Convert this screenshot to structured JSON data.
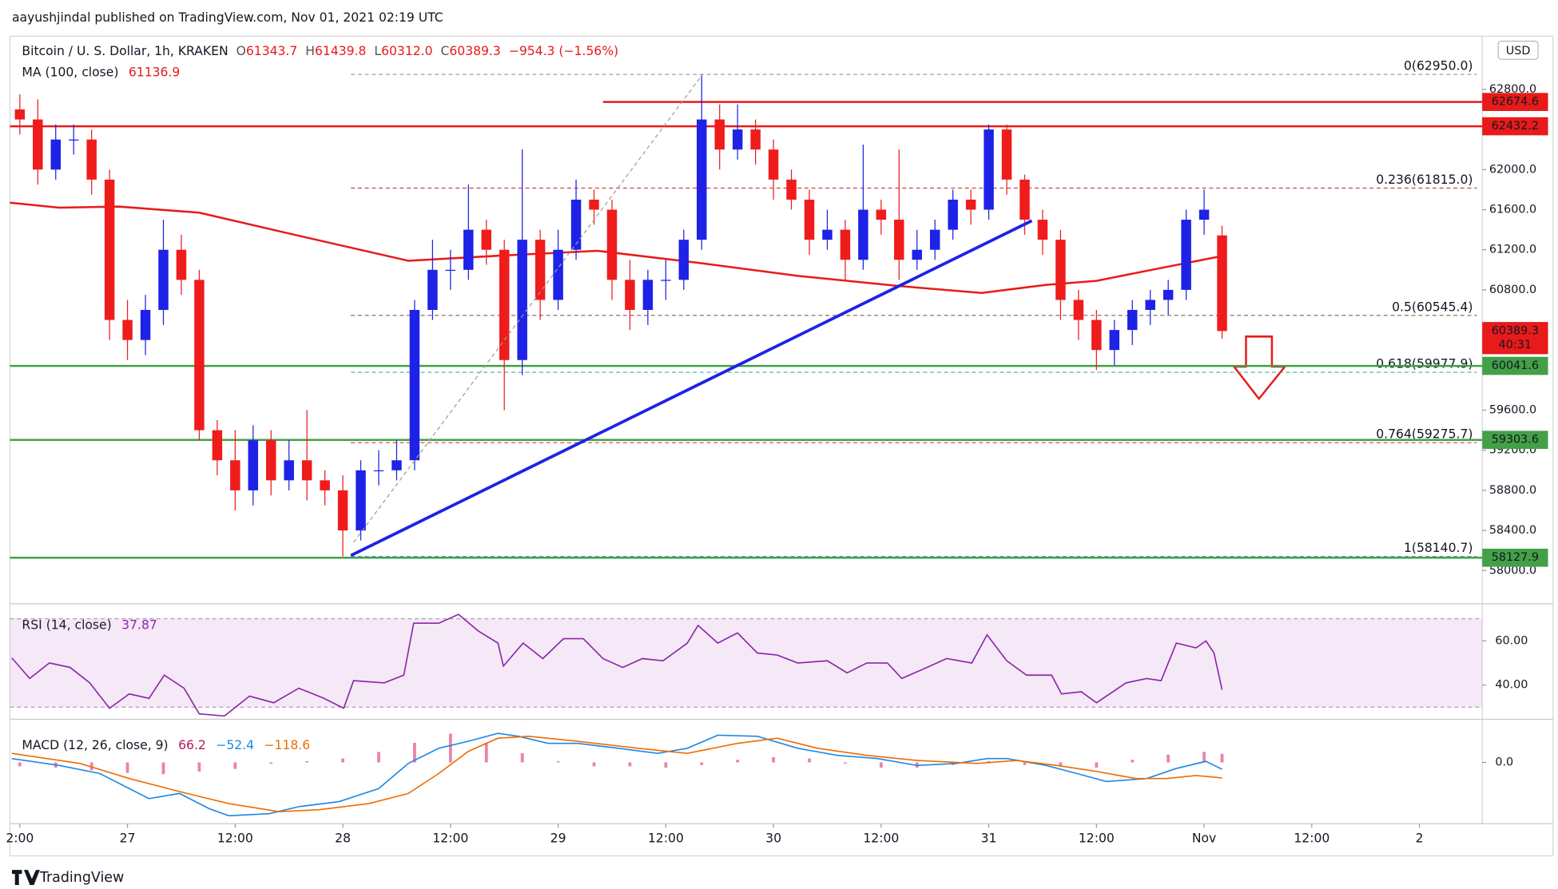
{
  "chart_data": {
    "type": "candlestick",
    "published": "aayushjindal published on TradingView.com, Nov 01, 2021 02:19 UTC",
    "brand": "TradingView",
    "currency": "USD",
    "symbol": "Bitcoin / U. S. Dollar, 1h, KRAKEN",
    "ohlc": [
      {
        "key": "O",
        "value": "61343.7"
      },
      {
        "key": "H",
        "value": "61439.8"
      },
      {
        "key": "L",
        "value": "60312.0"
      },
      {
        "key": "C",
        "value": "60389.3"
      }
    ],
    "change": "−954.3 (−1.56%)",
    "xlim": [
      -1.1,
      163
    ],
    "xticks": [
      {
        "value": 0,
        "label": "2:00"
      },
      {
        "value": 12,
        "label": "27"
      },
      {
        "value": 24,
        "label": "12:00"
      },
      {
        "value": 36,
        "label": "28"
      },
      {
        "value": 48,
        "label": "12:00"
      },
      {
        "value": 60,
        "label": "29"
      },
      {
        "value": 72,
        "label": "12:00"
      },
      {
        "value": 84,
        "label": "30"
      },
      {
        "value": 96,
        "label": "12:00"
      },
      {
        "value": 108,
        "label": "31"
      },
      {
        "value": 120,
        "label": "12:00"
      },
      {
        "value": 132,
        "label": "Nov"
      },
      {
        "value": 144,
        "label": "12:00"
      },
      {
        "value": 156,
        "label": "2"
      }
    ],
    "ylim": [
      57679,
      63291
    ],
    "yticks": [
      {
        "value": 62800,
        "label": "62800.0"
      },
      {
        "value": 62000,
        "label": "62000.0"
      },
      {
        "value": 61600,
        "label": "61600.0"
      },
      {
        "value": 61200,
        "label": "61200.0"
      },
      {
        "value": 60800,
        "label": "60800.0"
      },
      {
        "value": 59600,
        "label": "59600.0"
      },
      {
        "value": 59200,
        "label": "59200.0"
      },
      {
        "value": 58800,
        "label": "58800.0"
      },
      {
        "value": 58400,
        "label": "58400.0"
      },
      {
        "value": 58000,
        "label": "58000.0"
      }
    ],
    "candles": {
      "up_color": "#1e22e6",
      "down_color": "#ef1c1c",
      "x": [
        0,
        2,
        4,
        6,
        8,
        10,
        12,
        14,
        16,
        18,
        20,
        22,
        24,
        26,
        28,
        30,
        32,
        34,
        36,
        38,
        40,
        42,
        44,
        46,
        48,
        50,
        52,
        54,
        56,
        58,
        60,
        62,
        64,
        66,
        68,
        70,
        72,
        74,
        76,
        78,
        80,
        82,
        84,
        86,
        88,
        90,
        92,
        94,
        96,
        98,
        100,
        102,
        104,
        106,
        108,
        110,
        112,
        114,
        116,
        118,
        120,
        122,
        124,
        126,
        128,
        130,
        132,
        134
      ],
      "open": [
        62600,
        62500,
        62000,
        62300,
        62300,
        61900,
        60500,
        60300,
        60600,
        61200,
        60900,
        59400,
        59100,
        58800,
        59300,
        58900,
        59100,
        58900,
        58800,
        58400,
        59000,
        59000,
        59100,
        60600,
        61000,
        61000,
        61400,
        61200,
        60100,
        61300,
        60700,
        61200,
        61700,
        61600,
        60900,
        60600,
        60900,
        60900,
        61300,
        62500,
        62200,
        62400,
        62200,
        61900,
        61700,
        61300,
        61400,
        61100,
        61600,
        61500,
        61100,
        61200,
        61400,
        61700,
        61600,
        62400,
        61900,
        61500,
        61300,
        60700,
        60500,
        60200,
        60400,
        60600,
        60700,
        60800,
        61500,
        61343.7
      ],
      "high": [
        62750,
        62700,
        62450,
        62450,
        62400,
        62000,
        60700,
        60750,
        61500,
        61350,
        61000,
        59500,
        59400,
        59450,
        59400,
        59300,
        59600,
        59000,
        58950,
        59100,
        59200,
        59300,
        60700,
        61300,
        61200,
        61850,
        61500,
        61300,
        62200,
        61400,
        61400,
        61900,
        61800,
        61700,
        61100,
        61000,
        61100,
        61400,
        62950,
        62650,
        62650,
        62500,
        62300,
        62000,
        61800,
        61600,
        61500,
        62250,
        61700,
        62200,
        61400,
        61500,
        61800,
        61800,
        62450,
        62450,
        61950,
        61600,
        61400,
        60800,
        60600,
        60500,
        60700,
        60800,
        60900,
        61600,
        61800,
        61439.8
      ],
      "low": [
        62350,
        61850,
        61900,
        62150,
        61750,
        60300,
        60100,
        60150,
        60450,
        60750,
        59300,
        58950,
        58600,
        58650,
        58750,
        58800,
        58700,
        58650,
        58140.7,
        58300,
        58850,
        58900,
        59000,
        60500,
        60800,
        60900,
        61050,
        59600,
        59950,
        60500,
        60600,
        61100,
        61450,
        60700,
        60400,
        60450,
        60700,
        60800,
        61200,
        62000,
        62100,
        62050,
        61700,
        61600,
        61150,
        61200,
        60900,
        61000,
        61350,
        60900,
        61000,
        61100,
        61300,
        61450,
        61500,
        61750,
        61350,
        61150,
        60500,
        60300,
        60000,
        60050,
        60250,
        60450,
        60550,
        60700,
        61350,
        60312.0
      ],
      "close": [
        62500,
        62000,
        62300,
        62300,
        61900,
        60500,
        60300,
        60600,
        61200,
        60900,
        59400,
        59100,
        58800,
        59300,
        58900,
        59100,
        58900,
        58800,
        58400,
        59000,
        59000,
        59100,
        60600,
        61000,
        61000,
        61400,
        61200,
        60100,
        61300,
        60700,
        61200,
        61700,
        61600,
        60900,
        60600,
        60900,
        60900,
        61300,
        62500,
        62200,
        62400,
        62200,
        61900,
        61700,
        61300,
        61400,
        61100,
        61600,
        61500,
        61100,
        61200,
        61400,
        61700,
        61600,
        62400,
        61900,
        61500,
        61300,
        60700,
        60500,
        60200,
        60400,
        60600,
        60700,
        60800,
        61500,
        61600,
        60389.3
      ]
    },
    "ma": {
      "name": "MA (100, close)",
      "value_label": "61136.9",
      "color": "#e81a1a",
      "x": [
        -1.1,
        4.4,
        11.1,
        20,
        31.1,
        43.3,
        53.3,
        64.4,
        75.6,
        86.7,
        97.8,
        107.2,
        114.4,
        120,
        125.6,
        134
      ],
      "values": [
        61670,
        61620,
        61630,
        61570,
        61340,
        61090,
        61140,
        61190,
        61070,
        60940,
        60840,
        60770,
        60850,
        60890,
        60990,
        61136.9
      ]
    },
    "hlines": [
      {
        "value": 62674.6,
        "color": "#e81a1a",
        "from": 65
      },
      {
        "value": 62432.2,
        "color": "#e81a1a",
        "from": -1.1
      },
      {
        "value": 60041.6,
        "color": "#43a047",
        "from": -1.1
      },
      {
        "value": 59303.6,
        "color": "#43a047",
        "from": -1.1
      },
      {
        "value": 58127.9,
        "color": "#43a047",
        "from": -1.1
      }
    ],
    "fib": [
      {
        "value": 62950,
        "label": "0(62950.0)",
        "color": "#8a8a8a"
      },
      {
        "value": 61815,
        "label": "0.236(61815.0)",
        "color": "#b71c1c"
      },
      {
        "value": 60545.4,
        "label": "0.5(60545.4)",
        "color": "#6d4c41"
      },
      {
        "value": 59977.9,
        "label": "0.618(59977.9)",
        "color": "#26a69a"
      },
      {
        "value": 59275.7,
        "label": "0.764(59275.7)",
        "color": "#c62828"
      },
      {
        "value": 58140.7,
        "label": "1(58140.7)",
        "color": "#1e88e5"
      }
    ],
    "fib_range": [
      36.9,
      162.4
    ],
    "trendlines": [
      {
        "x": [
          36.9,
          112.8
        ],
        "values": [
          58150,
          61490
        ],
        "color": "#1e22e6",
        "width": 3
      },
      {
        "x": [
          37.2,
          76.1
        ],
        "values": [
          58281,
          62950
        ],
        "color": "#9e9e9e",
        "width": 1,
        "dashed": true
      }
    ],
    "price_tags": [
      {
        "value": 62674.6,
        "label": "62674.6",
        "color": "#e81a1a"
      },
      {
        "value": 62432.2,
        "label": "62432.2",
        "color": "#e81a1a"
      },
      {
        "value": 60389.3,
        "label": "60389.3",
        "color": "#e81a1a",
        "countdown": "40:31"
      },
      {
        "value": 60041.6,
        "label": "60041.6",
        "color": "#43a047"
      },
      {
        "value": 59303.6,
        "label": "59303.6",
        "color": "#43a047"
      },
      {
        "value": 58127.9,
        "label": "58127.9",
        "color": "#43a047"
      }
    ],
    "rsi": {
      "name": "RSI (14, close)",
      "value_label": "37.87",
      "color": "#8e24aa",
      "ylim": [
        25,
        75.9
      ],
      "yticks": [
        {
          "value": 60,
          "label": "60.00"
        },
        {
          "value": 40,
          "label": "40.00"
        }
      ],
      "band": [
        30,
        70
      ],
      "x": [
        -0.9,
        1.1,
        3.3,
        5.6,
        7.8,
        10,
        12.2,
        14.4,
        16.1,
        18.3,
        20,
        22.8,
        25.6,
        28.3,
        31.1,
        33.9,
        36.1,
        37.2,
        40.6,
        42.8,
        43.9,
        46.7,
        48.9,
        51.1,
        53.3,
        53.9,
        56.1,
        58.3,
        60.6,
        62.8,
        65,
        67.2,
        69.4,
        71.7,
        74.4,
        75.6,
        77.8,
        80,
        82.2,
        84.4,
        86.7,
        90,
        92.2,
        94.4,
        96.7,
        98.3,
        101.1,
        103.3,
        106.1,
        107.8,
        110,
        112.2,
        115,
        116.1,
        118.3,
        120,
        123.3,
        125.6,
        127.2,
        128.9,
        131.1,
        132.2,
        133.1,
        134
      ],
      "values": [
        52.3,
        43,
        50,
        48,
        41,
        29.5,
        36,
        34,
        44.5,
        38.6,
        27,
        26,
        35,
        32,
        38.6,
        34,
        29.5,
        42,
        41,
        44.5,
        68,
        68,
        72,
        64.5,
        59,
        48.6,
        59,
        52,
        61,
        61,
        52,
        48,
        52,
        51,
        59,
        67,
        59,
        63.6,
        54.5,
        53.6,
        50,
        51,
        45.5,
        50,
        50,
        43,
        48,
        52,
        50,
        62.7,
        51,
        44.5,
        44.5,
        36,
        37,
        32,
        41,
        43,
        42,
        59,
        56.8,
        60,
        54.5,
        37.87
      ]
    },
    "macd": {
      "name": "MACD (12, 26, close, 9)",
      "labels": [
        {
          "text": "66.2",
          "color": "#b71c5c"
        },
        {
          "text": "−52.4",
          "color": "#1e88e5"
        },
        {
          "text": "−118.6",
          "color": "#ef6c00"
        }
      ],
      "ylim": [
        -469,
        315
      ],
      "yticks": [
        {
          "value": 0,
          "label": "0.0"
        }
      ],
      "macd": {
        "color": "#1e88e5",
        "x": [
          -0.9,
          4.4,
          8.9,
          12.2,
          14.4,
          17.8,
          21.1,
          23.3,
          27.8,
          31.1,
          35.6,
          40,
          43.3,
          46.7,
          50,
          53.3,
          55.6,
          58.9,
          62.2,
          66.7,
          71.1,
          74.4,
          77.8,
          82.2,
          86.7,
          91.1,
          95.6,
          100,
          104.4,
          107.8,
          110,
          114.4,
          117.8,
          121.1,
          125.6,
          128.9,
          132.2,
          134
        ],
        "values": [
          30,
          -23,
          -85,
          -200,
          -277,
          -238,
          -354,
          -408,
          -392,
          -338,
          -300,
          -200,
          -8,
          108,
          162,
          223,
          200,
          146,
          146,
          108,
          69,
          108,
          208,
          200,
          108,
          54,
          30,
          -23,
          -8,
          30,
          30,
          -23,
          -85,
          -146,
          -123,
          -46,
          8,
          -52.4
        ]
      },
      "signal": {
        "color": "#ef6c00",
        "x": [
          -0.9,
          6.7,
          12.2,
          17.8,
          23.3,
          28.9,
          33.3,
          38.9,
          43.3,
          46.7,
          50,
          53.3,
          56.7,
          62.2,
          68.9,
          74.4,
          80,
          84.4,
          88.9,
          94.4,
          100,
          106.7,
          111.1,
          115.6,
          120,
          124.4,
          127.8,
          131.1,
          134
        ],
        "values": [
          69,
          -8,
          -123,
          -223,
          -315,
          -377,
          -362,
          -315,
          -238,
          -85,
          85,
          185,
          200,
          162,
          108,
          69,
          146,
          185,
          108,
          54,
          15,
          -8,
          15,
          -23,
          -69,
          -123,
          -123,
          -100,
          -118.6
        ]
      },
      "histogram": {
        "color": "#d81b60",
        "x": [
          0,
          4,
          8,
          12,
          16,
          20,
          24,
          28,
          32,
          36,
          40,
          44,
          48,
          52,
          56,
          60,
          64,
          68,
          72,
          76,
          80,
          84,
          88,
          92,
          96,
          100,
          104,
          108,
          112,
          116,
          120,
          124,
          128,
          132,
          134
        ],
        "values": [
          -30,
          -40,
          -60,
          -80,
          -90,
          -70,
          -50,
          -10,
          10,
          30,
          80,
          150,
          220,
          150,
          70,
          10,
          -30,
          -30,
          -40,
          -20,
          20,
          40,
          30,
          -10,
          -40,
          -40,
          -20,
          10,
          -20,
          -30,
          -40,
          20,
          60,
          80,
          66.2
        ]
      }
    }
  }
}
